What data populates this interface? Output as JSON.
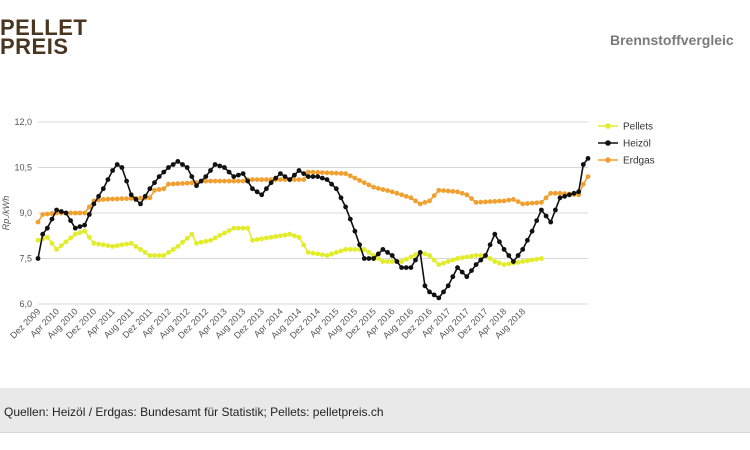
{
  "header": {
    "logo_line1": "PELLET",
    "logo_line2": "PREIS",
    "title": "Brennstoffvergleic"
  },
  "footer": {
    "source": "Quellen: Heizöl / Erdgas: Bundesamt für Statistik; Pellets: pelletpreis.ch"
  },
  "colors": {
    "pellets": "#e2ec28",
    "heizoel": "#111111",
    "erdgas": "#f0a030",
    "grid": "#d8d8d8",
    "axis_text": "#555555"
  },
  "chart_data": {
    "type": "line",
    "ylabel": "Rp./kWh",
    "ylim": [
      6.0,
      12.0
    ],
    "yticks": [
      "6,0",
      "7,5",
      "9,0",
      "10,5",
      "12,0"
    ],
    "ytick_values": [
      6.0,
      7.5,
      9.0,
      10.5,
      12.0
    ],
    "x_start": "Dez 2009",
    "x_end": "Dez 2018",
    "x_ticks": [
      "Dez 2009",
      "Apr 2010",
      "Aug 2010",
      "Dez 2010",
      "Apr 2011",
      "Aug 2011",
      "Dez 2011",
      "Apr 2012",
      "Aug 2012",
      "Dez 2012",
      "Apr 2013",
      "Aug 2013",
      "Dez 2013",
      "Apr 2014",
      "Aug 2014",
      "Dez 2014",
      "Apr 2015",
      "Aug 2015",
      "Dez 2015",
      "Apr 2016",
      "Aug 2016",
      "Dez 2016",
      "Apr 2017",
      "Aug 2017",
      "Dez 2017",
      "Apr 2018",
      "Aug 2018"
    ],
    "grid": true,
    "legend_position": "right",
    "series": [
      {
        "name": "Pellets",
        "color": "#e2ec28",
        "keypoints": [
          [
            0,
            8.1
          ],
          [
            2,
            8.2
          ],
          [
            4,
            7.8
          ],
          [
            8,
            8.3
          ],
          [
            10,
            8.4
          ],
          [
            12,
            8.0
          ],
          [
            16,
            7.9
          ],
          [
            20,
            8.0
          ],
          [
            24,
            7.6
          ],
          [
            27,
            7.6
          ],
          [
            30,
            7.9
          ],
          [
            33,
            8.3
          ],
          [
            34,
            8.0
          ],
          [
            37,
            8.1
          ],
          [
            42,
            8.5
          ],
          [
            45,
            8.5
          ],
          [
            46,
            8.1
          ],
          [
            50,
            8.2
          ],
          [
            54,
            8.3
          ],
          [
            56,
            8.2
          ],
          [
            58,
            7.7
          ],
          [
            62,
            7.6
          ],
          [
            66,
            7.8
          ],
          [
            70,
            7.8
          ],
          [
            72,
            7.6
          ],
          [
            74,
            7.4
          ],
          [
            78,
            7.4
          ],
          [
            82,
            7.7
          ],
          [
            84,
            7.6
          ],
          [
            86,
            7.3
          ],
          [
            90,
            7.5
          ],
          [
            94,
            7.6
          ],
          [
            96,
            7.6
          ],
          [
            98,
            7.4
          ],
          [
            100,
            7.3
          ],
          [
            104,
            7.4
          ],
          [
            108,
            7.5
          ]
        ]
      },
      {
        "name": "Heizöl",
        "color": "#111111",
        "keypoints": [
          [
            0,
            7.5
          ],
          [
            1,
            8.3
          ],
          [
            2,
            8.5
          ],
          [
            4,
            9.1
          ],
          [
            6,
            9.0
          ],
          [
            8,
            8.5
          ],
          [
            10,
            8.6
          ],
          [
            12,
            9.3
          ],
          [
            14,
            9.8
          ],
          [
            16,
            10.4
          ],
          [
            17,
            10.6
          ],
          [
            18,
            10.5
          ],
          [
            20,
            9.6
          ],
          [
            22,
            9.3
          ],
          [
            24,
            9.8
          ],
          [
            26,
            10.2
          ],
          [
            28,
            10.5
          ],
          [
            30,
            10.7
          ],
          [
            32,
            10.5
          ],
          [
            34,
            9.9
          ],
          [
            36,
            10.2
          ],
          [
            38,
            10.6
          ],
          [
            40,
            10.5
          ],
          [
            42,
            10.2
          ],
          [
            44,
            10.3
          ],
          [
            46,
            9.8
          ],
          [
            48,
            9.6
          ],
          [
            50,
            10.0
          ],
          [
            52,
            10.3
          ],
          [
            54,
            10.1
          ],
          [
            56,
            10.4
          ],
          [
            58,
            10.2
          ],
          [
            60,
            10.2
          ],
          [
            62,
            10.1
          ],
          [
            64,
            9.8
          ],
          [
            66,
            9.2
          ],
          [
            68,
            8.4
          ],
          [
            70,
            7.5
          ],
          [
            72,
            7.5
          ],
          [
            74,
            7.8
          ],
          [
            76,
            7.6
          ],
          [
            78,
            7.2
          ],
          [
            80,
            7.2
          ],
          [
            82,
            7.7
          ],
          [
            83,
            6.6
          ],
          [
            84,
            6.4
          ],
          [
            86,
            6.2
          ],
          [
            88,
            6.6
          ],
          [
            90,
            7.2
          ],
          [
            92,
            6.9
          ],
          [
            94,
            7.3
          ],
          [
            96,
            7.6
          ],
          [
            98,
            8.3
          ],
          [
            100,
            7.8
          ],
          [
            102,
            7.4
          ],
          [
            104,
            7.8
          ],
          [
            106,
            8.4
          ],
          [
            108,
            9.1
          ],
          [
            110,
            8.7
          ],
          [
            112,
            9.5
          ],
          [
            114,
            9.6
          ],
          [
            116,
            9.7
          ],
          [
            117,
            10.6
          ],
          [
            118,
            10.8
          ]
        ]
      },
      {
        "name": "Erdgas",
        "color": "#f0a030",
        "keypoints": [
          [
            0,
            8.7
          ],
          [
            1,
            8.95
          ],
          [
            4,
            9.0
          ],
          [
            10,
            9.0
          ],
          [
            12,
            9.4
          ],
          [
            14,
            9.45
          ],
          [
            24,
            9.5
          ],
          [
            25,
            9.75
          ],
          [
            27,
            9.8
          ],
          [
            28,
            9.95
          ],
          [
            34,
            10.0
          ],
          [
            35,
            10.05
          ],
          [
            44,
            10.05
          ],
          [
            45,
            10.1
          ],
          [
            57,
            10.1
          ],
          [
            58,
            10.35
          ],
          [
            66,
            10.3
          ],
          [
            70,
            10.0
          ],
          [
            72,
            9.85
          ],
          [
            76,
            9.7
          ],
          [
            80,
            9.5
          ],
          [
            82,
            9.3
          ],
          [
            84,
            9.4
          ],
          [
            86,
            9.75
          ],
          [
            90,
            9.7
          ],
          [
            92,
            9.6
          ],
          [
            94,
            9.35
          ],
          [
            100,
            9.4
          ],
          [
            102,
            9.45
          ],
          [
            104,
            9.3
          ],
          [
            108,
            9.35
          ],
          [
            110,
            9.65
          ],
          [
            112,
            9.65
          ],
          [
            116,
            9.6
          ],
          [
            117,
            9.95
          ],
          [
            118,
            10.2
          ]
        ]
      }
    ]
  }
}
